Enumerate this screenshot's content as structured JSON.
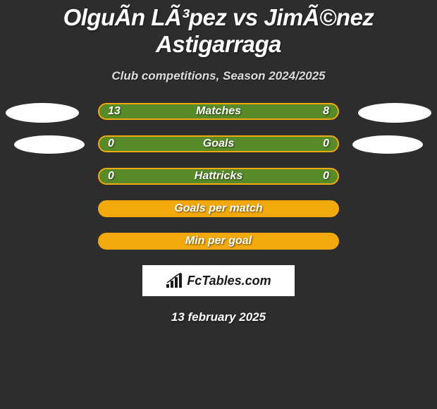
{
  "title": "OlguÃ­n LÃ³pez vs JimÃ©nez Astigarraga",
  "subtitle": "Club competitions, Season 2024/2025",
  "footer_date": "13 february 2025",
  "logo_text": "FcTables.com",
  "colors": {
    "background": "#2d2d2d",
    "bar_fills": [
      "#578b29",
      "#f1a90d"
    ],
    "bar_border": "#f1a90d",
    "ellipse": "#ffffff",
    "text": "#ffffff"
  },
  "rows": [
    {
      "label": "Matches",
      "left": "13",
      "right": "8",
      "fill": 0,
      "show_ellipse": "both1"
    },
    {
      "label": "Goals",
      "left": "0",
      "right": "0",
      "fill": 0,
      "show_ellipse": "both2"
    },
    {
      "label": "Hattricks",
      "left": "0",
      "right": "0",
      "fill": 0,
      "show_ellipse": "none"
    },
    {
      "label": "Goals per match",
      "left": "",
      "right": "",
      "fill": 1,
      "show_ellipse": "none"
    },
    {
      "label": "Min per goal",
      "left": "",
      "right": "",
      "fill": 1,
      "show_ellipse": "none"
    }
  ]
}
